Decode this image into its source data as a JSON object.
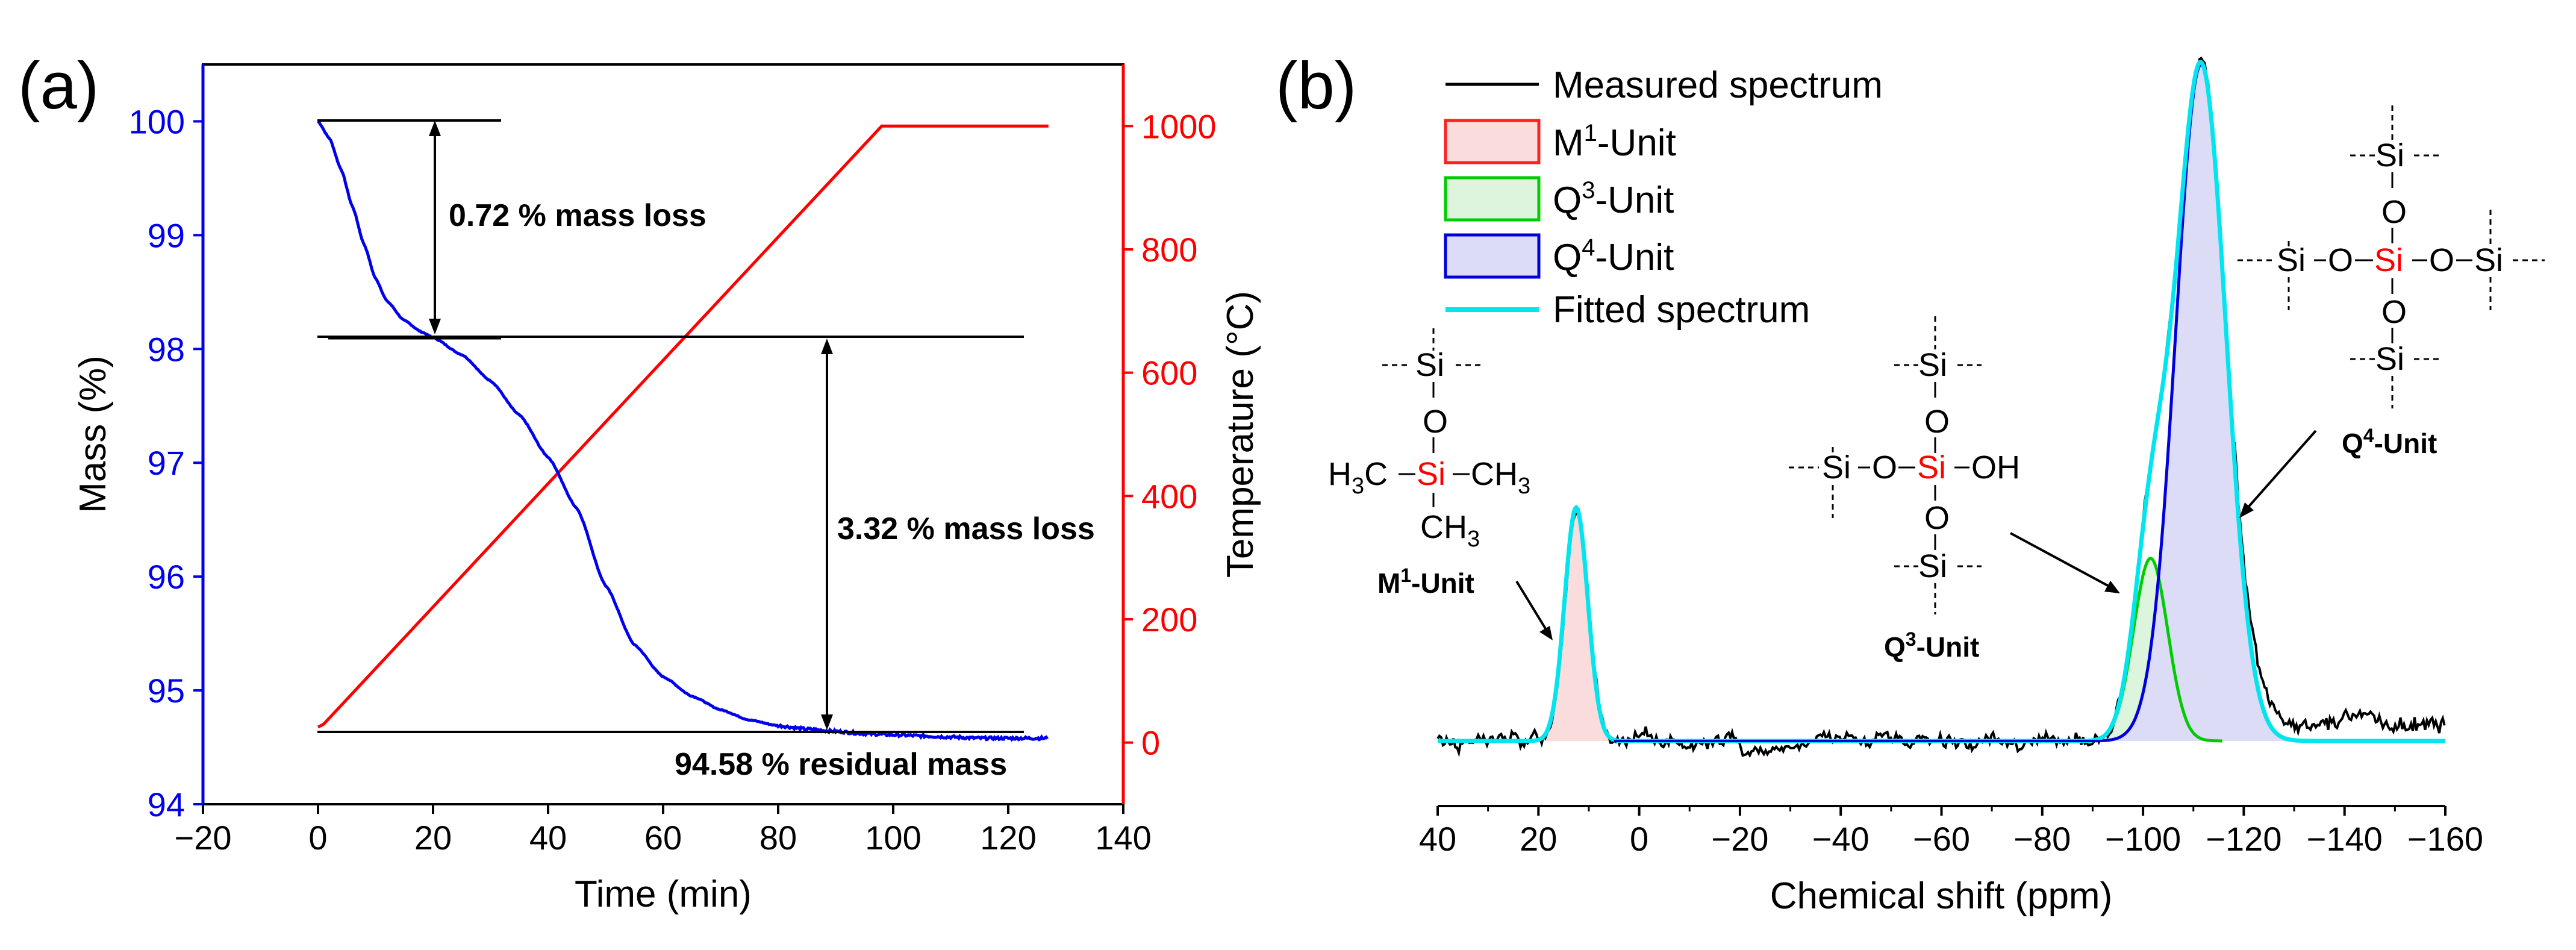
{
  "chart_data": [
    {
      "panel": "(a)",
      "type": "line",
      "xlabel": "Time (min)",
      "ylabel": "Mass (%)",
      "ylabel_right": "Temperature (°C)",
      "xlim": [
        -20,
        140
      ],
      "ylim": [
        94,
        100.5
      ],
      "ylim_right": [
        -100,
        1100
      ],
      "x_ticks": [
        "−20",
        "0",
        "20",
        "40",
        "60",
        "80",
        "100",
        "120",
        "140"
      ],
      "y_ticks": [
        "94",
        "95",
        "96",
        "97",
        "98",
        "99",
        "100"
      ],
      "y_ticks_right": [
        "0",
        "200",
        "400",
        "600",
        "800",
        "1000"
      ],
      "colors": {
        "mass": "#0000ee",
        "temperature": "#ff0000",
        "left_axis": "#0000ee",
        "right_axis": "#ff0000"
      },
      "series": [
        {
          "name": "Mass",
          "x": [
            0,
            2,
            4,
            6,
            8,
            10,
            12,
            15,
            18,
            20,
            25,
            30,
            35,
            40,
            45,
            50,
            55,
            60,
            65,
            70,
            75,
            80,
            85,
            90,
            95,
            100,
            105,
            110,
            115,
            120,
            125,
            127
          ],
          "y": [
            100.0,
            99.85,
            99.58,
            99.25,
            98.92,
            98.62,
            98.42,
            98.25,
            98.15,
            98.1,
            97.95,
            97.72,
            97.42,
            97.05,
            96.6,
            95.92,
            95.4,
            95.12,
            94.95,
            94.83,
            94.74,
            94.69,
            94.66,
            94.64,
            94.62,
            94.61,
            94.6,
            94.59,
            94.58,
            94.58,
            94.58,
            94.58
          ]
        },
        {
          "name": "Temperature",
          "axis": "right",
          "x": [
            0,
            1,
            98,
            127
          ],
          "y": [
            25,
            30,
            1000,
            1000
          ]
        }
      ],
      "annotations": {
        "loss1": "0.72 % mass loss",
        "loss2": "3.32 % mass loss",
        "residual": "94.58 % residual mass"
      }
    },
    {
      "panel": "(b)",
      "type": "line",
      "xlabel": "Chemical shift (ppm)",
      "xlim": [
        40,
        -160
      ],
      "x_ticks": [
        "40",
        "20",
        "0",
        "−20",
        "−40",
        "−60",
        "−80",
        "−100",
        "−120",
        "−140",
        "−160"
      ],
      "colors": {
        "measured": "#000000",
        "fitted": "#00e5ee",
        "M1": "#ff2020",
        "Q3": "#00cc00",
        "Q4": "#0000dd"
      },
      "legend": [
        {
          "label": "Measured spectrum",
          "kind": "line",
          "color": "#000000"
        },
        {
          "label": "M",
          "sup": "1",
          "label_rest": "-Unit",
          "kind": "box",
          "color": "#ff2020",
          "fill": "#fbdcdc"
        },
        {
          "label": "Q",
          "sup": "3",
          "label_rest": "-Unit",
          "kind": "box",
          "color": "#00cc00",
          "fill": "#dcf5dc"
        },
        {
          "label": "Q",
          "sup": "4",
          "label_rest": "-Unit",
          "kind": "box",
          "color": "#0000dd",
          "fill": "#dcdcf7"
        },
        {
          "label": "Fitted spectrum",
          "kind": "line",
          "color": "#00e5ee"
        }
      ],
      "peaks": [
        {
          "name": "M1-Unit",
          "center": 12.5,
          "width": 2.3,
          "height": 0.345
        },
        {
          "name": "Q3-Unit",
          "center": -101.5,
          "width": 3.4,
          "height": 0.27
        },
        {
          "name": "Q4-Unit",
          "center": -111.5,
          "width": 5.0,
          "height": 1.0
        }
      ],
      "labels": {
        "m1_label": "M",
        "m1_sup": "1",
        "m1_rest": "-Unit",
        "q3_label": "Q",
        "q3_sup": "3",
        "q3_rest": "-Unit",
        "q4_label": "Q",
        "q4_sup": "4",
        "q4_rest": "-Unit"
      },
      "structures": {
        "si": "Si",
        "o": "O",
        "oh": "OH",
        "ch3_h3c": "H3C",
        "ch3": "CH3"
      }
    }
  ]
}
